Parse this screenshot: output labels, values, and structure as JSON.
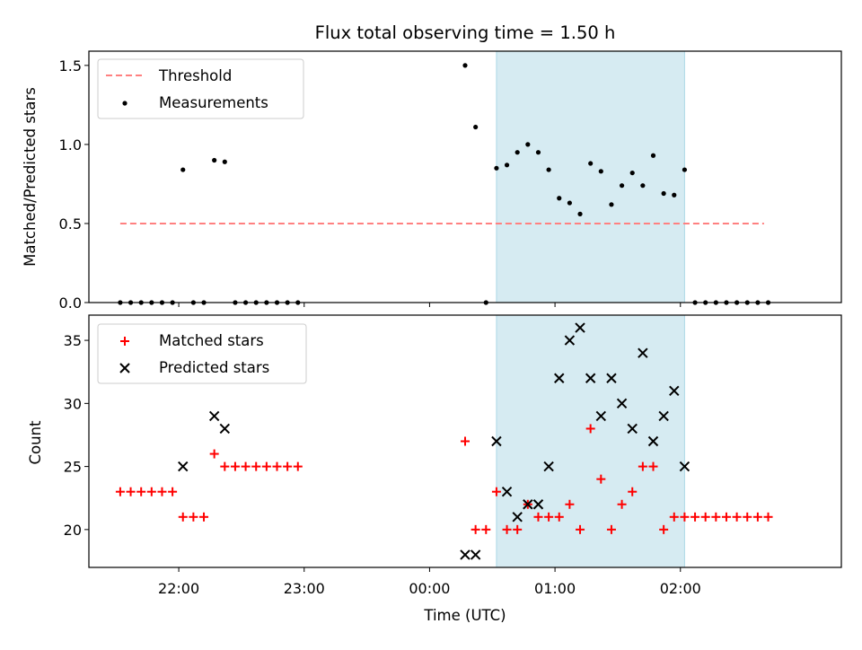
{
  "figure": {
    "title": "Flux total observing time = 1.50 h"
  },
  "chart_data": [
    {
      "type": "scatter",
      "panel": "top",
      "title": "Flux total observing time = 1.50 h",
      "xlabel": "",
      "ylabel": "Matched/Predicted stars",
      "xlim": [
        "21:17",
        "03:17"
      ],
      "ylim": [
        0,
        1.59
      ],
      "yticks": [
        0.0,
        0.5,
        1.0,
        1.5
      ],
      "ytick_labels": [
        "0.0",
        "0.5",
        "1.0",
        "1.5"
      ],
      "shaded_region": {
        "start": "00:32",
        "end": "02:02",
        "color": "#add8e6"
      },
      "threshold": {
        "name": "Threshold",
        "value": 0.5,
        "x_range": [
          "21:32",
          "02:40"
        ],
        "color": "#ff8080",
        "style": "dashed"
      },
      "legend": {
        "position": "upper-left",
        "entries": [
          "Threshold",
          "Measurements"
        ]
      },
      "series": [
        {
          "name": "Measurements",
          "marker": "dot",
          "color": "#000000",
          "points": [
            [
              "21:32",
              0.0
            ],
            [
              "21:37",
              0.0
            ],
            [
              "21:42",
              0.0
            ],
            [
              "21:47",
              0.0
            ],
            [
              "21:52",
              0.0
            ],
            [
              "21:57",
              0.0
            ],
            [
              "22:02",
              0.84
            ],
            [
              "22:07",
              0.0
            ],
            [
              "22:12",
              0.0
            ],
            [
              "22:17",
              0.9
            ],
            [
              "22:22",
              0.89
            ],
            [
              "22:27",
              0.0
            ],
            [
              "22:32",
              0.0
            ],
            [
              "22:37",
              0.0
            ],
            [
              "22:42",
              0.0
            ],
            [
              "22:47",
              0.0
            ],
            [
              "22:52",
              0.0
            ],
            [
              "22:57",
              0.0
            ],
            [
              "00:17",
              1.5
            ],
            [
              "00:22",
              1.11
            ],
            [
              "00:27",
              0.0
            ],
            [
              "00:32",
              0.85
            ],
            [
              "00:37",
              0.87
            ],
            [
              "00:42",
              0.95
            ],
            [
              "00:47",
              1.0
            ],
            [
              "00:52",
              0.95
            ],
            [
              "00:57",
              0.84
            ],
            [
              "01:02",
              0.66
            ],
            [
              "01:07",
              0.63
            ],
            [
              "01:12",
              0.56
            ],
            [
              "01:17",
              0.88
            ],
            [
              "01:22",
              0.83
            ],
            [
              "01:27",
              0.62
            ],
            [
              "01:32",
              0.74
            ],
            [
              "01:37",
              0.82
            ],
            [
              "01:42",
              0.74
            ],
            [
              "01:47",
              0.93
            ],
            [
              "01:52",
              0.69
            ],
            [
              "01:57",
              0.68
            ],
            [
              "02:02",
              0.84
            ],
            [
              "02:07",
              0.0
            ],
            [
              "02:12",
              0.0
            ],
            [
              "02:17",
              0.0
            ],
            [
              "02:22",
              0.0
            ],
            [
              "02:27",
              0.0
            ],
            [
              "02:32",
              0.0
            ],
            [
              "02:37",
              0.0
            ],
            [
              "02:42",
              0.0
            ]
          ]
        }
      ]
    },
    {
      "type": "scatter",
      "panel": "bottom",
      "xlabel": "Time (UTC)",
      "ylabel": "Count",
      "xlim": [
        "21:17",
        "03:17"
      ],
      "ylim": [
        17,
        37
      ],
      "xticks": [
        "22:00",
        "23:00",
        "00:00",
        "01:00",
        "02:00"
      ],
      "yticks": [
        20,
        25,
        30,
        35
      ],
      "ytick_labels": [
        "20",
        "25",
        "30",
        "35"
      ],
      "shaded_region": {
        "start": "00:32",
        "end": "02:02",
        "color": "#add8e6"
      },
      "legend": {
        "position": "upper-left",
        "entries": [
          "Matched stars",
          "Predicted stars"
        ]
      },
      "series": [
        {
          "name": "Matched stars",
          "marker": "plus",
          "color": "#ff0000",
          "points": [
            [
              "21:32",
              23
            ],
            [
              "21:37",
              23
            ],
            [
              "21:42",
              23
            ],
            [
              "21:47",
              23
            ],
            [
              "21:52",
              23
            ],
            [
              "21:57",
              23
            ],
            [
              "22:02",
              21
            ],
            [
              "22:07",
              21
            ],
            [
              "22:12",
              21
            ],
            [
              "22:17",
              26
            ],
            [
              "22:22",
              25
            ],
            [
              "22:27",
              25
            ],
            [
              "22:32",
              25
            ],
            [
              "22:37",
              25
            ],
            [
              "22:42",
              25
            ],
            [
              "22:47",
              25
            ],
            [
              "22:52",
              25
            ],
            [
              "22:57",
              25
            ],
            [
              "00:17",
              27
            ],
            [
              "00:22",
              20
            ],
            [
              "00:27",
              20
            ],
            [
              "00:32",
              23
            ],
            [
              "00:37",
              20
            ],
            [
              "00:42",
              20
            ],
            [
              "00:47",
              22
            ],
            [
              "00:52",
              21
            ],
            [
              "00:57",
              21
            ],
            [
              "01:02",
              21
            ],
            [
              "01:07",
              22
            ],
            [
              "01:12",
              20
            ],
            [
              "01:17",
              28
            ],
            [
              "01:22",
              24
            ],
            [
              "01:27",
              20
            ],
            [
              "01:32",
              22
            ],
            [
              "01:37",
              23
            ],
            [
              "01:42",
              25
            ],
            [
              "01:47",
              25
            ],
            [
              "01:52",
              20
            ],
            [
              "01:57",
              21
            ],
            [
              "02:02",
              21
            ],
            [
              "02:07",
              21
            ],
            [
              "02:12",
              21
            ],
            [
              "02:17",
              21
            ],
            [
              "02:22",
              21
            ],
            [
              "02:27",
              21
            ],
            [
              "02:32",
              21
            ],
            [
              "02:37",
              21
            ],
            [
              "02:42",
              21
            ]
          ]
        },
        {
          "name": "Predicted stars",
          "marker": "x",
          "color": "#000000",
          "points": [
            [
              "22:02",
              25
            ],
            [
              "22:17",
              29
            ],
            [
              "22:22",
              28
            ],
            [
              "00:17",
              18
            ],
            [
              "00:22",
              18
            ],
            [
              "00:32",
              27
            ],
            [
              "00:37",
              23
            ],
            [
              "00:42",
              21
            ],
            [
              "00:47",
              22
            ],
            [
              "00:52",
              22
            ],
            [
              "00:57",
              25
            ],
            [
              "01:02",
              32
            ],
            [
              "01:07",
              35
            ],
            [
              "01:12",
              36
            ],
            [
              "01:17",
              32
            ],
            [
              "01:22",
              29
            ],
            [
              "01:27",
              32
            ],
            [
              "01:32",
              30
            ],
            [
              "01:37",
              28
            ],
            [
              "01:42",
              34
            ],
            [
              "01:47",
              27
            ],
            [
              "01:52",
              29
            ],
            [
              "01:57",
              31
            ],
            [
              "02:02",
              25
            ]
          ]
        }
      ]
    }
  ]
}
